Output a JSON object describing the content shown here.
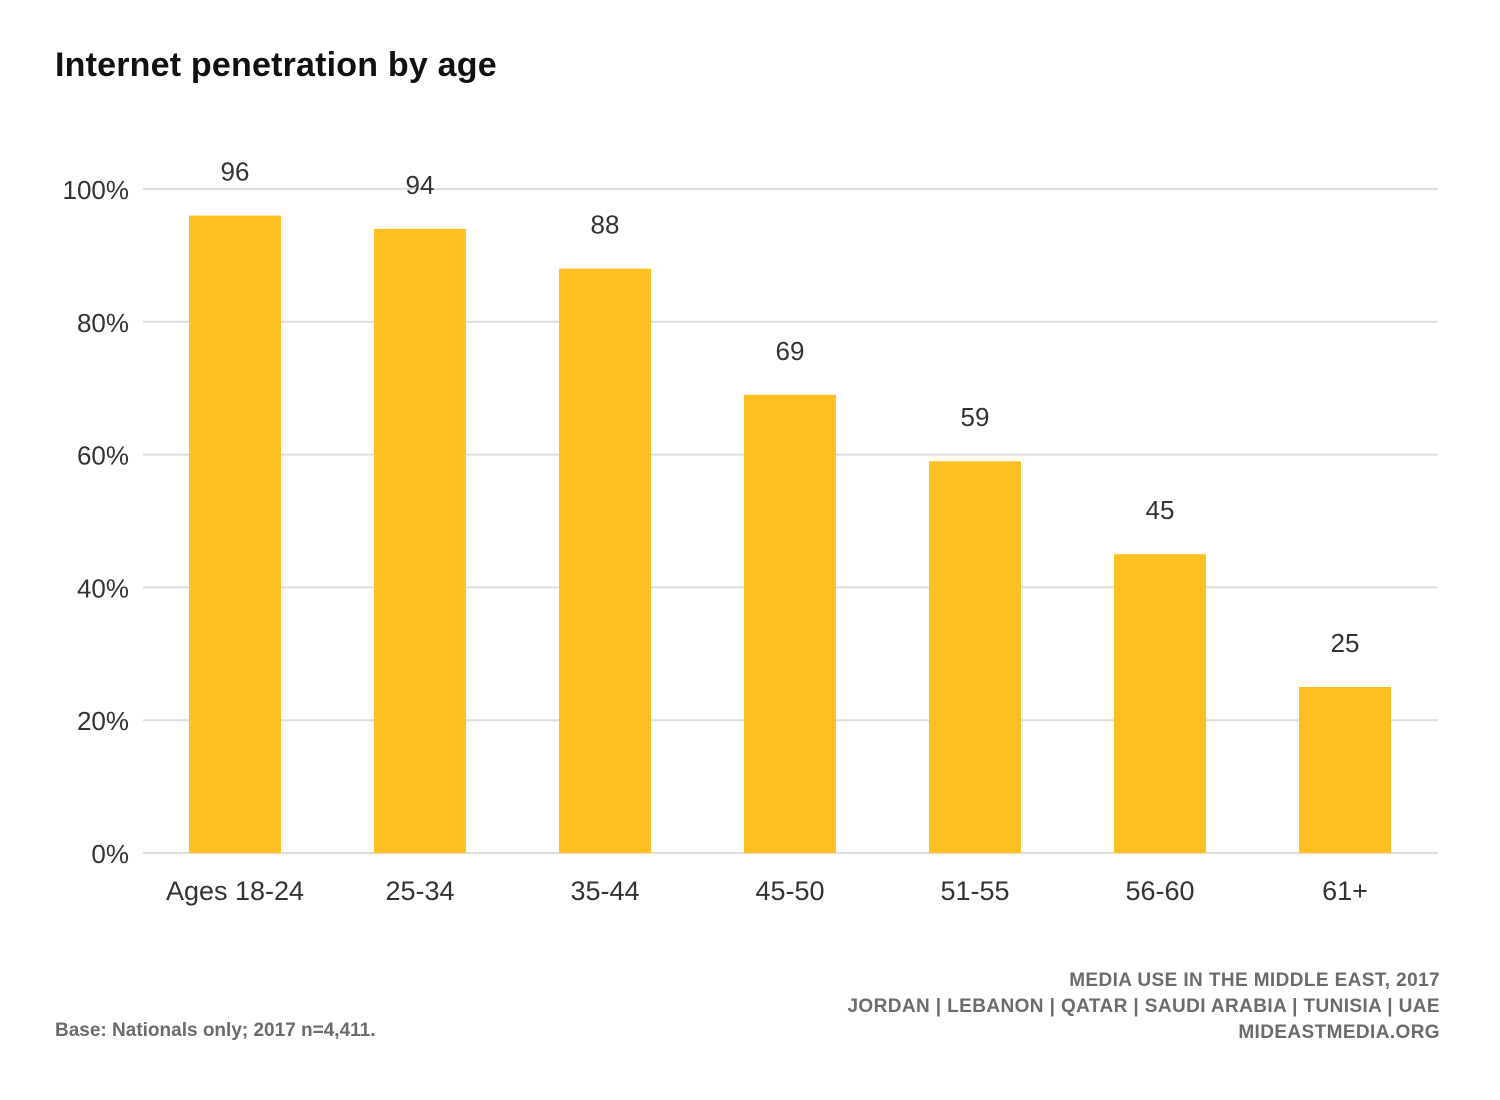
{
  "title": "Internet penetration by age",
  "chart_data": {
    "type": "bar",
    "categories": [
      "Ages 18-24",
      "25-34",
      "35-44",
      "45-50",
      "51-55",
      "56-60",
      "61+"
    ],
    "values": [
      96,
      94,
      88,
      69,
      59,
      45,
      25
    ],
    "data_labels": [
      "96",
      "94",
      "88",
      "69",
      "59",
      "45",
      "25"
    ],
    "title": "Internet penetration by age",
    "xlabel": "",
    "ylabel": "",
    "ylim": [
      0,
      100
    ],
    "yticks": [
      0,
      20,
      40,
      60,
      80,
      100
    ],
    "ytick_labels": [
      "0%",
      "20%",
      "40%",
      "60%",
      "80%",
      "100%"
    ],
    "grid": true,
    "bar_color": "#FDC020",
    "grid_color": "#dddddd",
    "text_color": "#333333"
  },
  "footer": {
    "base_note": "Base: Nationals only; 2017 n=4,411.",
    "source_line1": "MEDIA USE IN THE MIDDLE EAST, 2017",
    "source_line2": "JORDAN | LEBANON | QATAR | SAUDI ARABIA | TUNISIA | UAE",
    "source_line3": "MIDEASTMEDIA.ORG"
  }
}
